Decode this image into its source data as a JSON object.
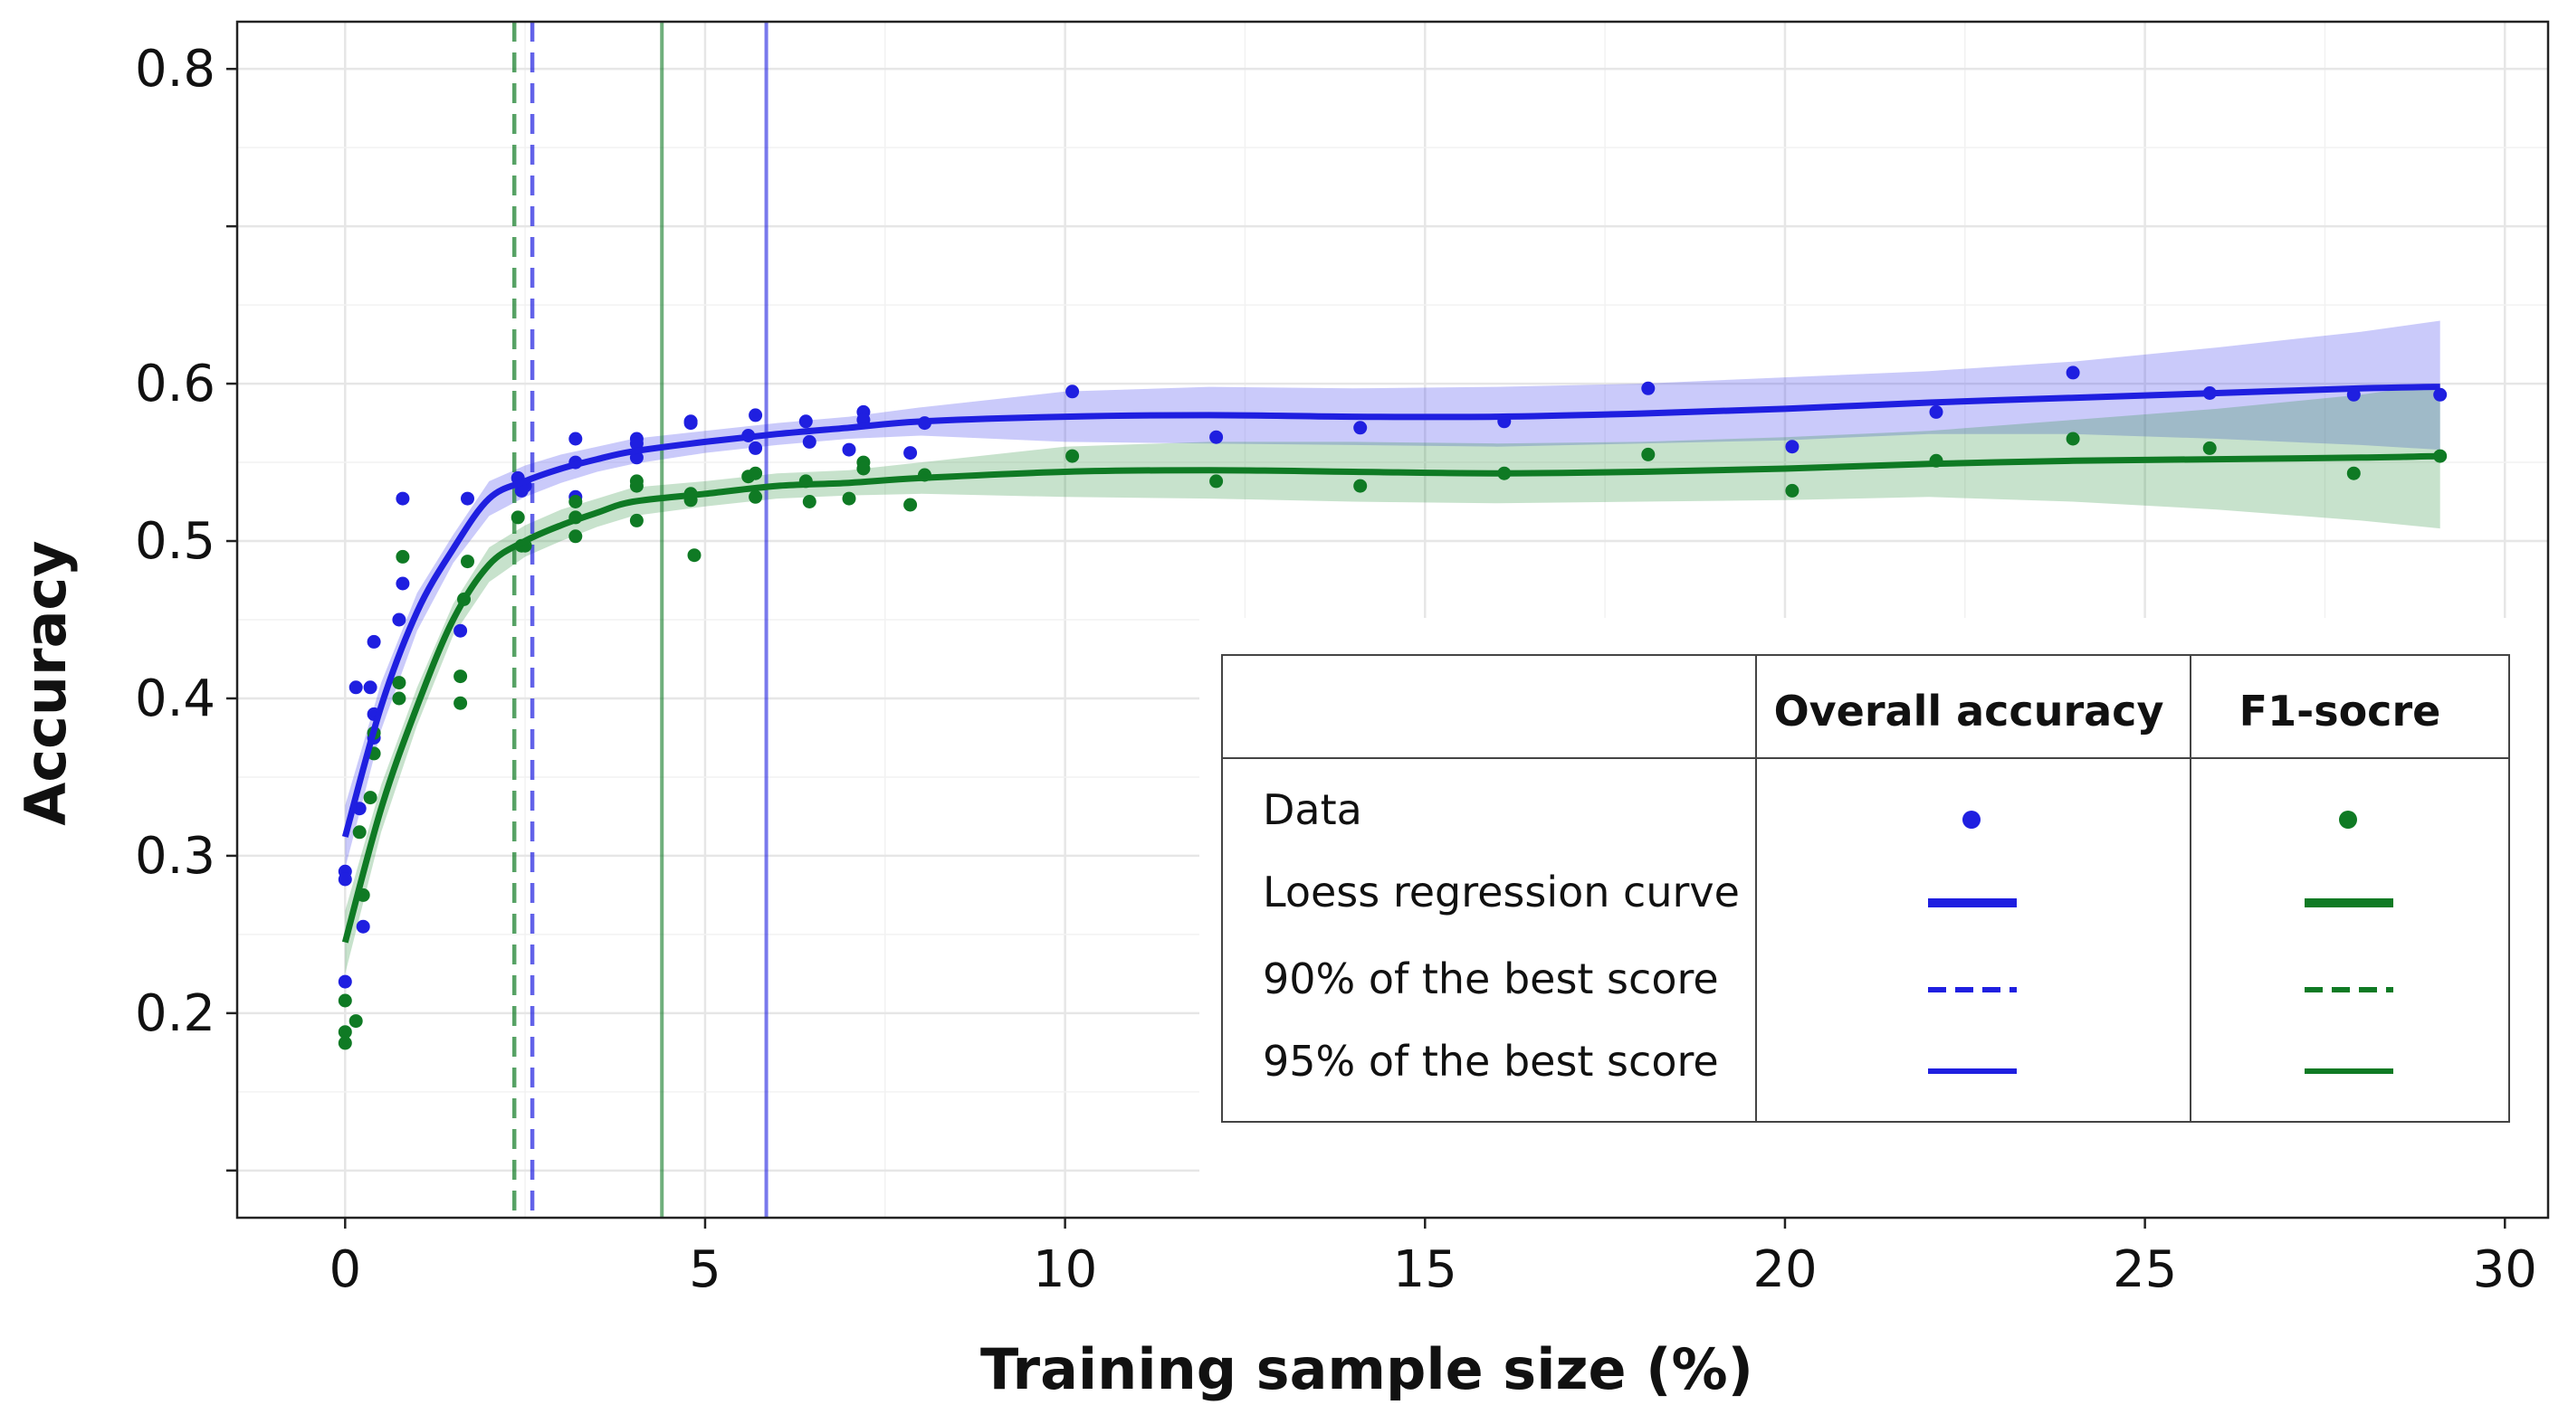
{
  "chart_data": {
    "type": "scatter",
    "xlabel": "Training sample size (%)",
    "ylabel": "Accuracy",
    "xlim": [
      -1.5,
      30.6
    ],
    "ylim": [
      0.07,
      0.83
    ],
    "xticks": [
      0,
      5,
      10,
      15,
      20,
      25,
      30
    ],
    "xtick_labels": [
      "0",
      "5",
      "10",
      "15",
      "20",
      "25",
      "30"
    ],
    "yticks": [
      0.1,
      0.2,
      0.3,
      0.4,
      0.5,
      0.6,
      0.7,
      0.8
    ],
    "ytick_labels": [
      "",
      "0.2",
      "0.3",
      "0.4",
      "0.5",
      "0.6",
      "",
      "0.8"
    ],
    "grid": true,
    "colors": {
      "overall": "#1f1fe0",
      "f1": "#0f7a24"
    },
    "series": [
      {
        "key": "overall",
        "points": [
          [
            0,
            0.29
          ],
          [
            0,
            0.285
          ],
          [
            0,
            0.22
          ],
          [
            0.15,
            0.407
          ],
          [
            0.2,
            0.33
          ],
          [
            0.25,
            0.255
          ],
          [
            0.35,
            0.407
          ],
          [
            0.4,
            0.39
          ],
          [
            0.4,
            0.436
          ],
          [
            0.4,
            0.375
          ],
          [
            0.8,
            0.527
          ],
          [
            0.8,
            0.473
          ],
          [
            0.75,
            0.45
          ],
          [
            1.6,
            0.443
          ],
          [
            1.7,
            0.527
          ],
          [
            2.4,
            0.54
          ],
          [
            2.45,
            0.532
          ],
          [
            2.5,
            0.535
          ],
          [
            3.2,
            0.565
          ],
          [
            3.2,
            0.55
          ],
          [
            3.2,
            0.528
          ],
          [
            4.05,
            0.565
          ],
          [
            4.05,
            0.562
          ],
          [
            4.05,
            0.553
          ],
          [
            4.8,
            0.576
          ],
          [
            4.8,
            0.575
          ],
          [
            5.6,
            0.567
          ],
          [
            5.7,
            0.559
          ],
          [
            5.7,
            0.58
          ],
          [
            6.4,
            0.576
          ],
          [
            6.45,
            0.563
          ],
          [
            7.2,
            0.582
          ],
          [
            7.2,
            0.577
          ],
          [
            7.0,
            0.558
          ],
          [
            7.85,
            0.556
          ],
          [
            8.05,
            0.575
          ],
          [
            10.1,
            0.595
          ],
          [
            12.1,
            0.566
          ],
          [
            14.1,
            0.572
          ],
          [
            16.1,
            0.576
          ],
          [
            18.1,
            0.597
          ],
          [
            20.1,
            0.56
          ],
          [
            22.1,
            0.582
          ],
          [
            24.0,
            0.607
          ],
          [
            25.9,
            0.594
          ],
          [
            27.9,
            0.593
          ],
          [
            29.1,
            0.593
          ]
        ],
        "fit_x": [
          0,
          0.5,
          1.0,
          1.5,
          2.0,
          2.5,
          3.0,
          3.5,
          4.0,
          5.0,
          6.0,
          7.0,
          8.0,
          10.0,
          12.0,
          14.0,
          16.0,
          18.0,
          20.0,
          22.0,
          24.0,
          26.0,
          28.0,
          29.1
        ],
        "fit_y": [
          0.312,
          0.395,
          0.455,
          0.495,
          0.527,
          0.538,
          0.546,
          0.552,
          0.557,
          0.563,
          0.568,
          0.572,
          0.576,
          0.579,
          0.58,
          0.579,
          0.579,
          0.581,
          0.584,
          0.588,
          0.591,
          0.594,
          0.597,
          0.598
        ],
        "fit_lower": [
          0.292,
          0.38,
          0.443,
          0.486,
          0.516,
          0.528,
          0.537,
          0.544,
          0.549,
          0.556,
          0.561,
          0.565,
          0.567,
          0.563,
          0.562,
          0.561,
          0.56,
          0.562,
          0.564,
          0.568,
          0.568,
          0.565,
          0.561,
          0.558
        ],
        "fit_upper": [
          0.332,
          0.41,
          0.467,
          0.504,
          0.538,
          0.548,
          0.555,
          0.56,
          0.565,
          0.57,
          0.575,
          0.579,
          0.585,
          0.595,
          0.598,
          0.597,
          0.598,
          0.6,
          0.604,
          0.608,
          0.614,
          0.623,
          0.633,
          0.64
        ],
        "vline_90": 2.6,
        "vline_95": 5.85
      },
      {
        "key": "f1",
        "points": [
          [
            0,
            0.208
          ],
          [
            0,
            0.188
          ],
          [
            0,
            0.181
          ],
          [
            0.15,
            0.195
          ],
          [
            0.2,
            0.315
          ],
          [
            0.25,
            0.275
          ],
          [
            0.35,
            0.337
          ],
          [
            0.4,
            0.365
          ],
          [
            0.4,
            0.378
          ],
          [
            0.75,
            0.41
          ],
          [
            0.75,
            0.4
          ],
          [
            0.8,
            0.49
          ],
          [
            1.6,
            0.414
          ],
          [
            1.6,
            0.397
          ],
          [
            1.65,
            0.463
          ],
          [
            1.7,
            0.487
          ],
          [
            2.4,
            0.515
          ],
          [
            2.45,
            0.497
          ],
          [
            2.5,
            0.497
          ],
          [
            3.2,
            0.525
          ],
          [
            3.2,
            0.515
          ],
          [
            3.2,
            0.503
          ],
          [
            4.05,
            0.538
          ],
          [
            4.05,
            0.535
          ],
          [
            4.05,
            0.513
          ],
          [
            4.8,
            0.53
          ],
          [
            4.8,
            0.526
          ],
          [
            4.85,
            0.491
          ],
          [
            5.6,
            0.541
          ],
          [
            5.7,
            0.543
          ],
          [
            5.7,
            0.528
          ],
          [
            6.4,
            0.538
          ],
          [
            6.45,
            0.525
          ],
          [
            7.0,
            0.527
          ],
          [
            7.2,
            0.55
          ],
          [
            7.2,
            0.546
          ],
          [
            7.85,
            0.523
          ],
          [
            8.05,
            0.542
          ],
          [
            10.1,
            0.554
          ],
          [
            12.1,
            0.538
          ],
          [
            14.1,
            0.535
          ],
          [
            16.1,
            0.543
          ],
          [
            18.1,
            0.555
          ],
          [
            20.1,
            0.532
          ],
          [
            22.1,
            0.551
          ],
          [
            24.0,
            0.565
          ],
          [
            25.9,
            0.559
          ],
          [
            27.9,
            0.543
          ],
          [
            29.1,
            0.554
          ]
        ],
        "fit_x": [
          0,
          0.5,
          1.0,
          1.5,
          2.0,
          2.5,
          3.0,
          3.5,
          4.0,
          5.0,
          6.0,
          7.0,
          8.0,
          10.0,
          12.0,
          14.0,
          16.0,
          18.0,
          20.0,
          22.0,
          24.0,
          26.0,
          28.0,
          29.1
        ],
        "fit_y": [
          0.245,
          0.33,
          0.395,
          0.45,
          0.485,
          0.5,
          0.51,
          0.518,
          0.525,
          0.53,
          0.535,
          0.537,
          0.54,
          0.544,
          0.545,
          0.544,
          0.543,
          0.544,
          0.546,
          0.549,
          0.551,
          0.552,
          0.553,
          0.554
        ],
        "fit_lower": [
          0.225,
          0.315,
          0.383,
          0.44,
          0.474,
          0.49,
          0.5,
          0.509,
          0.516,
          0.522,
          0.527,
          0.529,
          0.53,
          0.528,
          0.527,
          0.525,
          0.524,
          0.525,
          0.526,
          0.528,
          0.525,
          0.52,
          0.513,
          0.508
        ],
        "fit_upper": [
          0.265,
          0.345,
          0.407,
          0.46,
          0.496,
          0.51,
          0.52,
          0.527,
          0.534,
          0.538,
          0.543,
          0.545,
          0.55,
          0.56,
          0.563,
          0.563,
          0.562,
          0.563,
          0.566,
          0.57,
          0.577,
          0.584,
          0.593,
          0.6
        ],
        "vline_90": 2.35,
        "vline_95": 4.4
      }
    ]
  },
  "legend": {
    "col_overall": "Overall accuracy",
    "col_f1": "F1-socre",
    "rows": {
      "data": "Data",
      "loess": "Loess regression curve",
      "p90": "90% of the best score",
      "p95": "95% of the best score"
    }
  }
}
